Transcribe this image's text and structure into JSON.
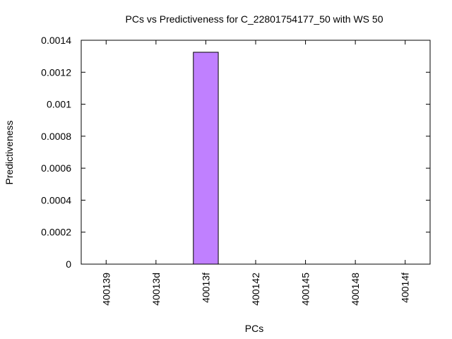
{
  "chart_data": {
    "type": "bar",
    "title": "PCs vs Predictiveness for C_22801754177_50 with WS 50",
    "xlabel": "PCs",
    "ylabel": "Predictiveness",
    "categories": [
      "400139",
      "40013d",
      "40013f",
      "400142",
      "400145",
      "400148",
      "40014f"
    ],
    "values": [
      0,
      0,
      0.001325,
      0,
      0,
      0,
      0
    ],
    "ylim": [
      0,
      0.0014
    ],
    "yticks": [
      "0",
      "0.0002",
      "0.0004",
      "0.0006",
      "0.0008",
      "0.001",
      "0.0012",
      "0.0014"
    ],
    "grid": false,
    "legend": "none",
    "bar_color": "#c080ff",
    "bar_edge_color": "#000000"
  }
}
